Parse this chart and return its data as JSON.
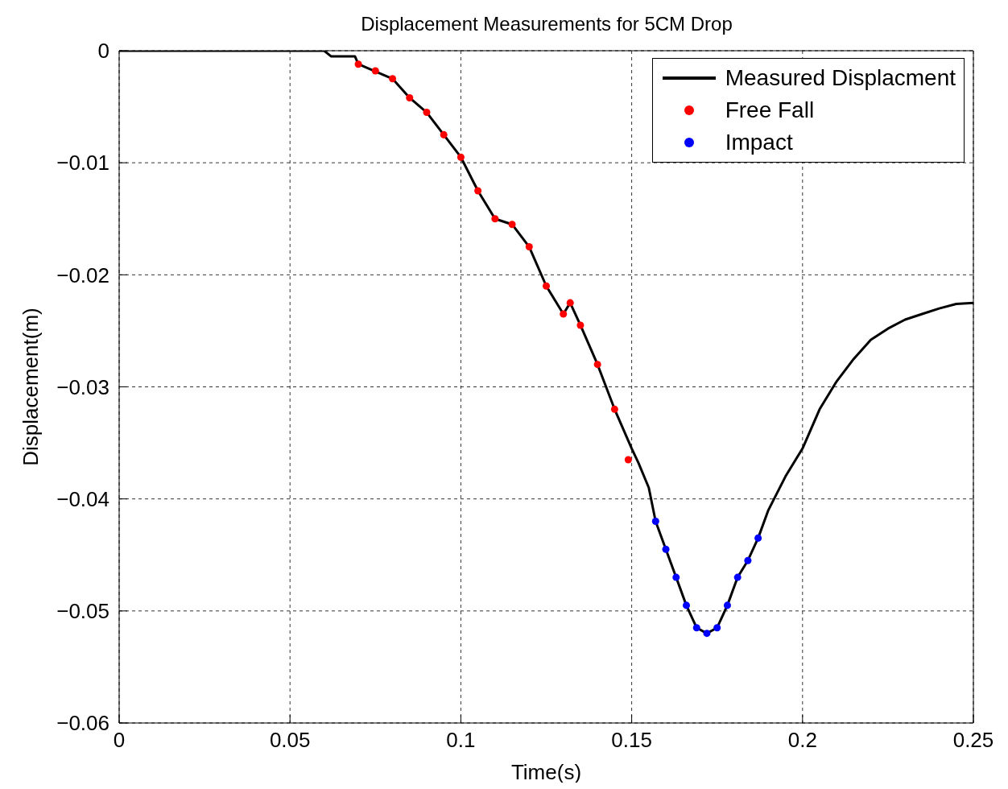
{
  "chart_data": {
    "type": "line",
    "title": "Displacement Measurements for 5CM Drop",
    "xlabel": "Time(s)",
    "ylabel": "Displacement(m)",
    "xlim": [
      0,
      0.25
    ],
    "xticks": [
      0,
      0.05,
      0.1,
      0.15,
      0.2,
      0.25
    ],
    "ylim": [
      -0.06,
      0
    ],
    "yticks": [
      {
        "value": -0.06,
        "label": "−0.06"
      },
      {
        "value": -0.05,
        "label": "−0.05"
      },
      {
        "value": -0.04,
        "label": "−0.04"
      },
      {
        "value": -0.03,
        "label": "−0.03"
      },
      {
        "value": -0.02,
        "label": "−0.02"
      },
      {
        "value": -0.01,
        "label": "−0.01"
      },
      0
    ],
    "grid": true,
    "legend": "top right",
    "series": [
      {
        "name": "Measured Displacment",
        "color": "#000000",
        "marker": "none",
        "x": [
          0,
          0.06,
          0.062,
          0.069,
          0.07,
          0.08,
          0.085,
          0.09,
          0.095,
          0.1,
          0.105,
          0.11,
          0.115,
          0.12,
          0.125,
          0.13,
          0.132,
          0.135,
          0.14,
          0.145,
          0.15,
          0.152,
          0.155,
          0.157,
          0.16,
          0.163,
          0.166,
          0.169,
          0.172,
          0.175,
          0.178,
          0.181,
          0.184,
          0.187,
          0.19,
          0.195,
          0.2,
          0.205,
          0.21,
          0.215,
          0.22,
          0.225,
          0.23,
          0.235,
          0.24,
          0.245,
          0.25
        ],
        "values": [
          0,
          0,
          -0.0005,
          -0.0005,
          -0.0012,
          -0.0025,
          -0.0042,
          -0.0055,
          -0.0075,
          -0.0095,
          -0.0125,
          -0.015,
          -0.0155,
          -0.0175,
          -0.021,
          -0.0235,
          -0.0225,
          -0.0245,
          -0.028,
          -0.032,
          -0.0355,
          -0.0368,
          -0.039,
          -0.042,
          -0.0445,
          -0.047,
          -0.0495,
          -0.0515,
          -0.052,
          -0.0515,
          -0.0495,
          -0.047,
          -0.0455,
          -0.0435,
          -0.041,
          -0.038,
          -0.0355,
          -0.032,
          -0.0295,
          -0.0275,
          -0.0258,
          -0.0248,
          -0.024,
          -0.0235,
          -0.023,
          -0.0226,
          -0.0225
        ]
      },
      {
        "name": "Free Fall",
        "type": "scatter",
        "color": "#ff0000",
        "marker": "circle",
        "x": [
          0.07,
          0.075,
          0.08,
          0.085,
          0.09,
          0.095,
          0.1,
          0.105,
          0.11,
          0.115,
          0.12,
          0.125,
          0.13,
          0.132,
          0.135,
          0.14,
          0.145,
          0.149
        ],
        "values": [
          -0.0012,
          -0.0018,
          -0.0025,
          -0.0042,
          -0.0055,
          -0.0075,
          -0.0095,
          -0.0125,
          -0.015,
          -0.0155,
          -0.0175,
          -0.021,
          -0.0235,
          -0.0225,
          -0.0245,
          -0.028,
          -0.032,
          -0.0365
        ]
      },
      {
        "name": "Impact",
        "type": "scatter",
        "color": "#0000ff",
        "marker": "circle",
        "x": [
          0.157,
          0.16,
          0.163,
          0.166,
          0.169,
          0.172,
          0.175,
          0.178,
          0.181,
          0.184,
          0.187
        ],
        "values": [
          -0.042,
          -0.0445,
          -0.047,
          -0.0495,
          -0.0515,
          -0.052,
          -0.0515,
          -0.0495,
          -0.047,
          -0.0455,
          -0.0435
        ]
      }
    ]
  }
}
